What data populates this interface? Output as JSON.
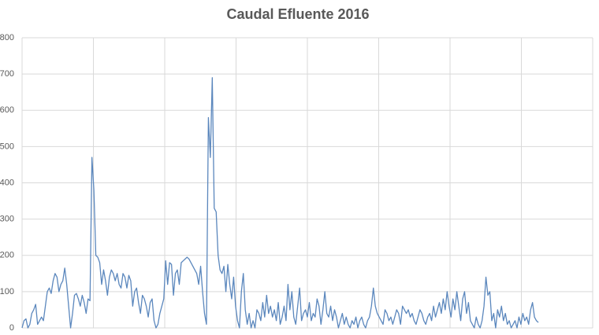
{
  "chart_data": {
    "type": "line",
    "title": "Caudal Efluente 2016",
    "series": [
      {
        "name": null,
        "color": "#5b87bd",
        "values": [
          0,
          20,
          25,
          0,
          10,
          40,
          50,
          65,
          10,
          20,
          30,
          20,
          60,
          100,
          110,
          95,
          130,
          150,
          140,
          100,
          120,
          130,
          165,
          120,
          60,
          0,
          40,
          90,
          95,
          80,
          60,
          90,
          70,
          40,
          80,
          75,
          470,
          380,
          200,
          195,
          180,
          120,
          160,
          130,
          90,
          140,
          160,
          150,
          130,
          150,
          120,
          110,
          150,
          140,
          110,
          145,
          130,
          60,
          100,
          110,
          70,
          40,
          90,
          80,
          60,
          30,
          70,
          80,
          20,
          0,
          10,
          40,
          60,
          80,
          185,
          120,
          180,
          175,
          90,
          150,
          160,
          120,
          180,
          185,
          190,
          195,
          190,
          180,
          170,
          160,
          150,
          120,
          170,
          100,
          40,
          10,
          580,
          470,
          690,
          330,
          320,
          200,
          160,
          150,
          170,
          100,
          175,
          120,
          80,
          140,
          60,
          20,
          0,
          100,
          150,
          50,
          10,
          40,
          0,
          20,
          0,
          50,
          40,
          20,
          70,
          30,
          90,
          40,
          60,
          30,
          50,
          20,
          70,
          10,
          30,
          60,
          20,
          120,
          50,
          100,
          30,
          10,
          60,
          110,
          20,
          40,
          50,
          30,
          70,
          20,
          40,
          30,
          80,
          60,
          10,
          50,
          100,
          40,
          30,
          60,
          20,
          50,
          30,
          0,
          20,
          40,
          10,
          30,
          10,
          0,
          20,
          10,
          30,
          0,
          20,
          30,
          10,
          0,
          20,
          30,
          60,
          110,
          60,
          40,
          30,
          20,
          10,
          50,
          40,
          20,
          30,
          10,
          30,
          50,
          40,
          10,
          60,
          50,
          40,
          50,
          30,
          40,
          20,
          10,
          30,
          50,
          40,
          20,
          10,
          30,
          40,
          20,
          60,
          30,
          50,
          70,
          40,
          80,
          50,
          100,
          60,
          30,
          80,
          50,
          100,
          60,
          20,
          80,
          100,
          40,
          70,
          20,
          10,
          0,
          30,
          10,
          0,
          20,
          60,
          140,
          90,
          100,
          20,
          40,
          0,
          50,
          30,
          60,
          20,
          40,
          10,
          20,
          0,
          10,
          20,
          0,
          30,
          10,
          40,
          20,
          30,
          10,
          50,
          70,
          30,
          20,
          15
        ]
      }
    ],
    "xlim": [
      0,
      294
    ],
    "ylim": [
      0,
      800
    ],
    "yticks": [
      0,
      100,
      200,
      300,
      400,
      500,
      600,
      700,
      800
    ],
    "grid": true
  }
}
